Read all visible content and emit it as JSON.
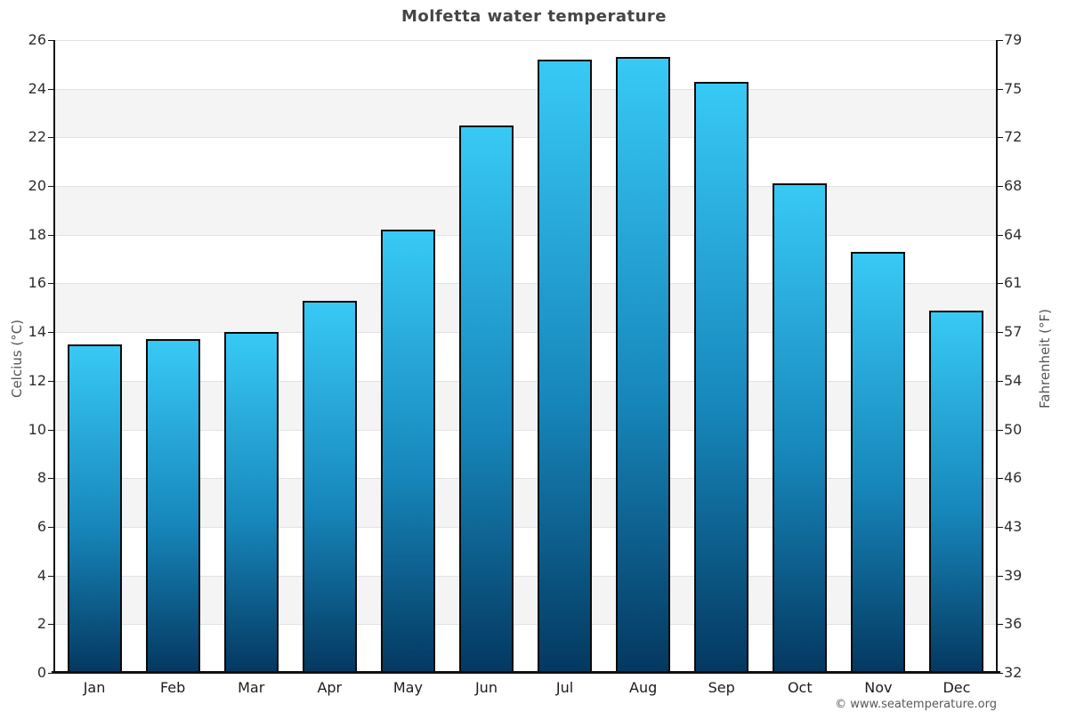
{
  "chart_data": {
    "type": "bar",
    "title": "Molfetta water temperature",
    "categories": [
      "Jan",
      "Feb",
      "Mar",
      "Apr",
      "May",
      "Jun",
      "Jul",
      "Aug",
      "Sep",
      "Oct",
      "Nov",
      "Dec"
    ],
    "values": [
      13.5,
      13.7,
      14.0,
      15.3,
      18.2,
      22.5,
      25.2,
      25.3,
      24.3,
      20.1,
      17.3,
      14.9
    ],
    "unit": "°C",
    "ylabel_left": "Celcius (°C)",
    "ylabel_right": "Fahrenheit (°F)",
    "ylim": [
      0,
      26
    ],
    "yticks_celsius": [
      0,
      2,
      4,
      6,
      8,
      10,
      12,
      14,
      16,
      18,
      20,
      22,
      24,
      26
    ],
    "yticks_fahrenheit": [
      32,
      36,
      39,
      43,
      46,
      50,
      54,
      57,
      61,
      64,
      68,
      72,
      75,
      79
    ],
    "grid": "alternating horizontal bands every 2°C, light gray on white",
    "legend": "none",
    "colors": {
      "bar_gradient_top": "#38c9f5",
      "bar_gradient_mid": "#1787bb",
      "bar_gradient_bottom": "#043860",
      "bar_border": "#0b0b0b",
      "band_gray": "#f4f4f4",
      "gridline": "#e2e2e2",
      "axis_line": "#111111",
      "title_text": "#454545",
      "tick_text": "#2e2e2e",
      "axis_title_text": "#555555",
      "footer_text": "#595959"
    }
  },
  "footer": {
    "credit": "© www.seatemperature.org"
  }
}
